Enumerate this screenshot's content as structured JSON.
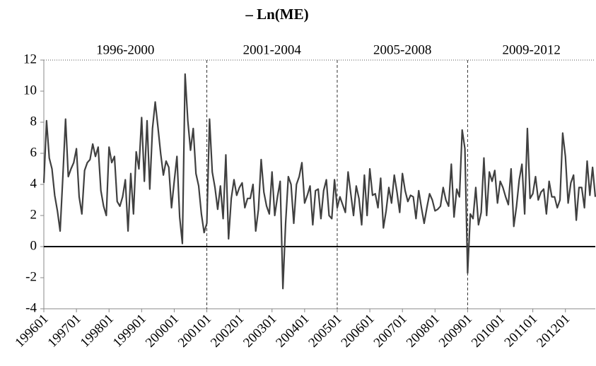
{
  "chart_data": {
    "type": "line",
    "title": "– Ln(ME)",
    "categories": [
      "199601",
      null,
      null,
      null,
      null,
      null,
      null,
      null,
      null,
      null,
      null,
      null,
      "199701",
      null,
      null,
      null,
      null,
      null,
      null,
      null,
      null,
      null,
      null,
      null,
      "199801",
      null,
      null,
      null,
      null,
      null,
      null,
      null,
      null,
      null,
      null,
      null,
      "199901",
      null,
      null,
      null,
      null,
      null,
      null,
      null,
      null,
      null,
      null,
      null,
      "200001",
      null,
      null,
      null,
      null,
      null,
      null,
      null,
      null,
      null,
      null,
      null,
      "200101",
      null,
      null,
      null,
      null,
      null,
      null,
      null,
      null,
      null,
      null,
      null,
      "200201",
      null,
      null,
      null,
      null,
      null,
      null,
      null,
      null,
      null,
      null,
      null,
      "200301",
      null,
      null,
      null,
      null,
      null,
      null,
      null,
      null,
      null,
      null,
      null,
      "200401",
      null,
      null,
      null,
      null,
      null,
      null,
      null,
      null,
      null,
      null,
      null,
      "200501",
      null,
      null,
      null,
      null,
      null,
      null,
      null,
      null,
      null,
      null,
      null,
      "200601",
      null,
      null,
      null,
      null,
      null,
      null,
      null,
      null,
      null,
      null,
      null,
      "200701",
      null,
      null,
      null,
      null,
      null,
      null,
      null,
      null,
      null,
      null,
      null,
      "200801",
      null,
      null,
      null,
      null,
      null,
      null,
      null,
      null,
      null,
      null,
      null,
      "200901",
      null,
      null,
      null,
      null,
      null,
      null,
      null,
      null,
      null,
      null,
      null,
      "201001",
      null,
      null,
      null,
      null,
      null,
      null,
      null,
      null,
      null,
      null,
      null,
      "201101",
      null,
      null,
      null,
      null,
      null,
      null,
      null,
      null,
      null,
      null,
      null,
      "201201",
      null,
      null,
      null,
      null,
      null,
      null,
      null,
      null,
      null,
      null,
      null
    ],
    "values": [
      4.1,
      8.1,
      5.7,
      5.0,
      3.3,
      2.3,
      1.0,
      4.5,
      8.2,
      4.5,
      5.0,
      5.4,
      6.3,
      3.2,
      2.1,
      4.9,
      5.4,
      5.6,
      6.6,
      5.8,
      6.4,
      3.6,
      2.6,
      2.0,
      6.4,
      5.4,
      5.8,
      2.9,
      2.6,
      3.2,
      4.3,
      1.0,
      4.7,
      2.1,
      6.1,
      5.0,
      8.3,
      4.2,
      8.1,
      3.7,
      7.6,
      9.3,
      7.7,
      6.0,
      4.6,
      5.5,
      5.1,
      2.5,
      4.2,
      5.8,
      1.9,
      0.2,
      11.1,
      8.1,
      6.2,
      7.6,
      4.7,
      3.9,
      2.1,
      0.9,
      1.5,
      8.2,
      4.8,
      3.8,
      2.4,
      3.9,
      1.8,
      5.9,
      0.5,
      3.1,
      4.3,
      3.3,
      3.8,
      4.1,
      2.5,
      3.1,
      3.1,
      4.0,
      1.0,
      2.4,
      5.6,
      3.5,
      2.6,
      2.1,
      4.8,
      2.0,
      3.2,
      4.2,
      -2.7,
      1.5,
      4.5,
      4.0,
      1.5,
      4.0,
      4.5,
      5.4,
      2.8,
      3.3,
      3.9,
      1.4,
      3.6,
      3.7,
      1.8,
      3.6,
      4.3,
      2.0,
      1.8,
      4.3,
      2.5,
      3.2,
      2.7,
      2.2,
      4.8,
      3.4,
      2.0,
      3.9,
      3.1,
      1.4,
      4.6,
      2.0,
      5.0,
      3.3,
      3.4,
      2.5,
      4.4,
      1.2,
      2.3,
      3.8,
      2.8,
      4.6,
      3.5,
      2.2,
      4.7,
      3.6,
      2.9,
      3.3,
      3.2,
      1.8,
      3.6,
      2.5,
      1.5,
      2.5,
      3.4,
      3.0,
      2.3,
      2.4,
      2.6,
      3.8,
      3.0,
      2.6,
      5.3,
      1.9,
      3.7,
      3.2,
      7.5,
      6.3,
      -1.7,
      2.1,
      1.8,
      3.8,
      1.4,
      2.2,
      5.7,
      2.0,
      4.8,
      4.2,
      4.9,
      2.8,
      4.2,
      3.8,
      3.2,
      2.7,
      5.0,
      1.3,
      2.6,
      4.3,
      5.3,
      2.1,
      7.6,
      3.1,
      3.4,
      4.5,
      3.0,
      3.5,
      3.7,
      2.1,
      4.2,
      3.2,
      3.2,
      2.5,
      3.0,
      7.3,
      5.8,
      2.8,
      4.1,
      4.6,
      1.7,
      3.8,
      3.8,
      2.5,
      5.5,
      3.3,
      5.1,
      3.2
    ],
    "color": "#404040",
    "ylim": [
      -4,
      12
    ],
    "yticks": [
      -4,
      -2,
      0,
      2,
      4,
      6,
      8,
      10,
      12
    ],
    "reference_line": 0,
    "periods": [
      "1996-2000",
      "2001-2004",
      "2005-2008",
      "2009-2012"
    ]
  }
}
